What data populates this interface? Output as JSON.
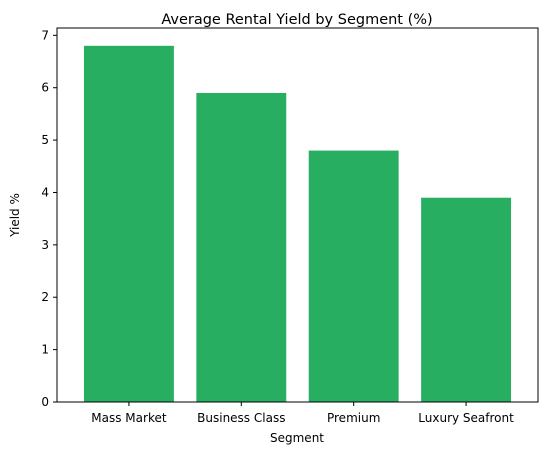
{
  "chart_data": {
    "type": "bar",
    "title": "Average Rental Yield by Segment (%)",
    "xlabel": "Segment",
    "ylabel": "Yield %",
    "categories": [
      "Mass Market",
      "Business Class",
      "Premium",
      "Luxury Seafront"
    ],
    "values": [
      6.8,
      5.9,
      4.8,
      3.9
    ],
    "ylim": [
      0,
      7.14
    ],
    "yticks": [
      "0",
      "1",
      "2",
      "3",
      "4",
      "5",
      "6",
      "7"
    ],
    "bar_color": "#27ae60",
    "grid": false,
    "legend": "none"
  }
}
